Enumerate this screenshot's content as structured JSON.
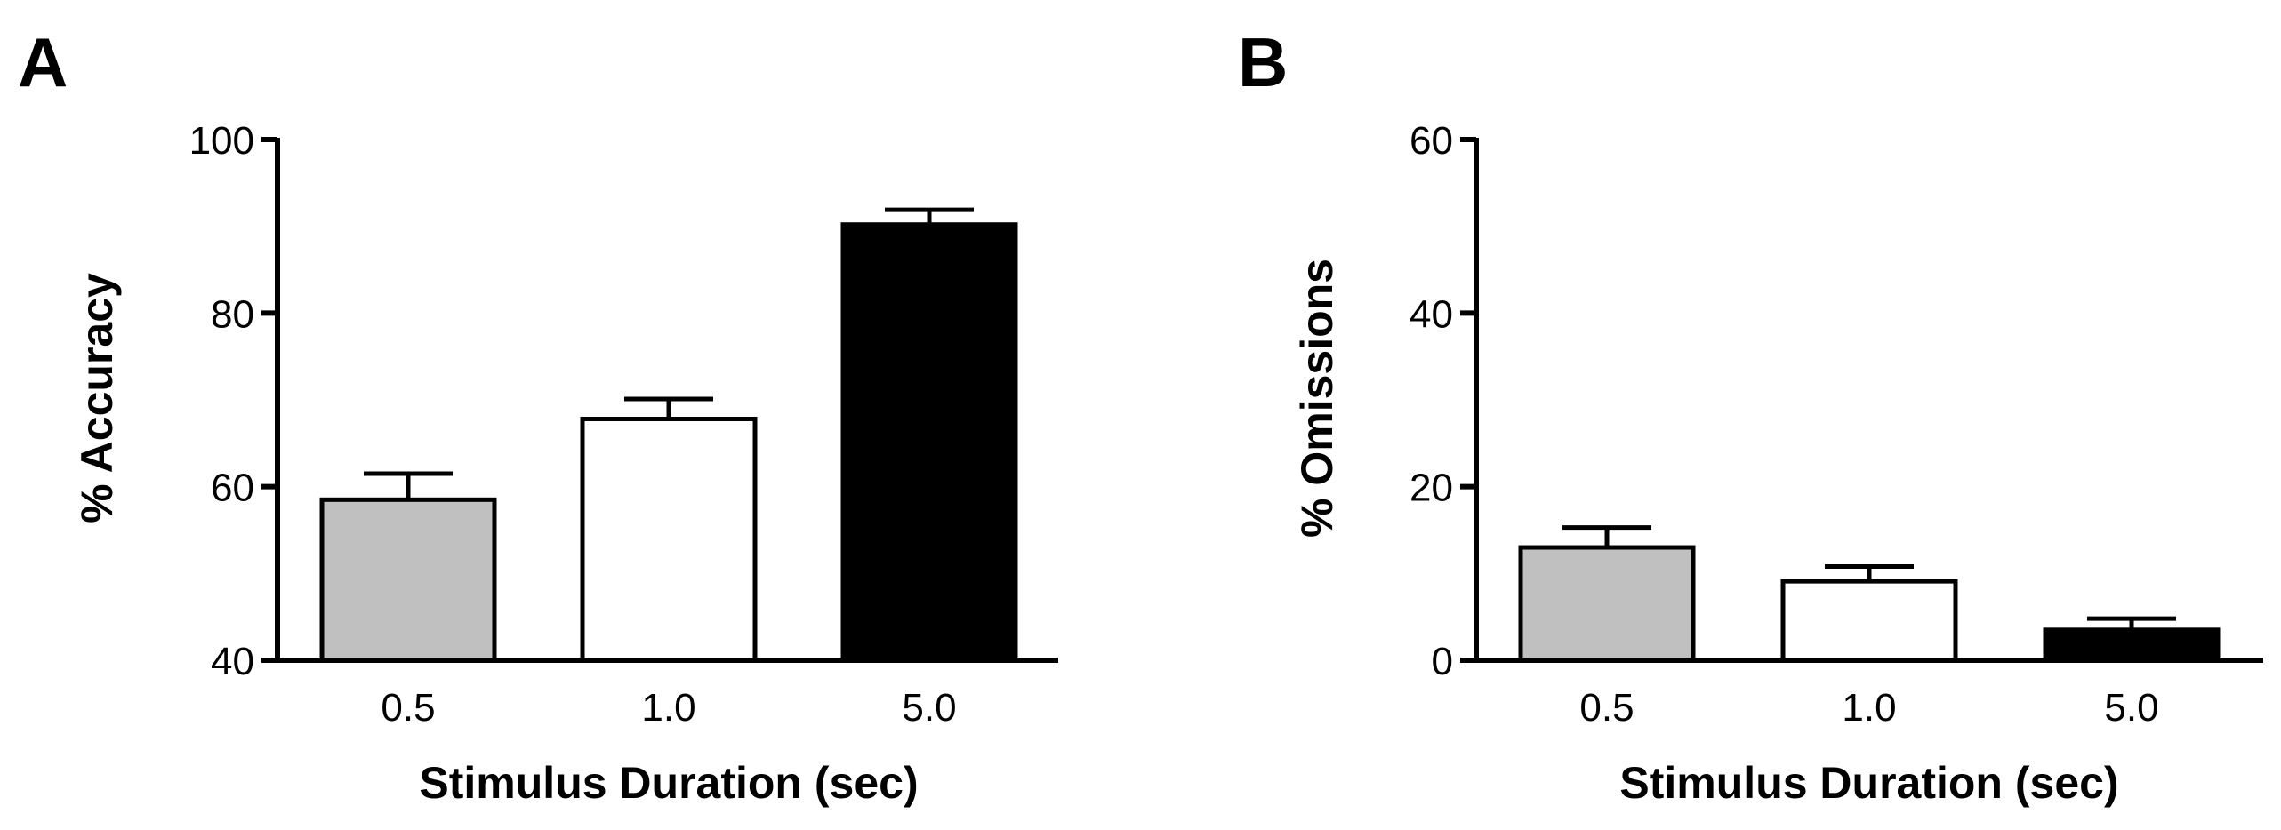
{
  "chart_data": [
    {
      "type": "bar",
      "panel_label": "A",
      "categories": [
        "0.5",
        "1.0",
        "5.0"
      ],
      "values": [
        58.5,
        67.8,
        90.2
      ],
      "errors": [
        3.0,
        2.3,
        1.7
      ],
      "bar_colors": [
        "#c0c0c0",
        "#ffffff",
        "#000000"
      ],
      "xlabel": "Stimulus Duration (sec)",
      "ylabel": "% Accuracy",
      "ylim": [
        40,
        100
      ],
      "yticks": [
        "40",
        "60",
        "80",
        "100"
      ],
      "grid": false
    },
    {
      "type": "bar",
      "panel_label": "B",
      "categories": [
        "0.5",
        "1.0",
        "5.0"
      ],
      "values": [
        13.0,
        9.1,
        3.5
      ],
      "errors": [
        2.3,
        1.7,
        1.3
      ],
      "bar_colors": [
        "#c0c0c0",
        "#ffffff",
        "#000000"
      ],
      "xlabel": "Stimulus Duration (sec)",
      "ylabel": "% Omissions",
      "ylim": [
        0,
        60
      ],
      "yticks": [
        "0",
        "20",
        "40",
        "60"
      ],
      "grid": false
    }
  ]
}
